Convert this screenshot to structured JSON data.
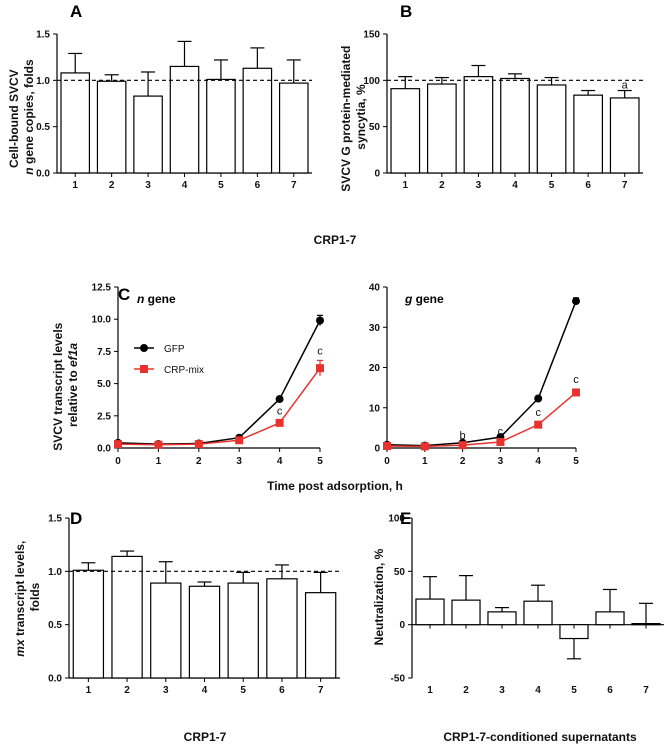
{
  "chart_data": [
    {
      "panel": "A",
      "type": "bar",
      "categories": [
        "1",
        "2",
        "3",
        "4",
        "5",
        "6",
        "7"
      ],
      "values": [
        1.08,
        0.99,
        0.83,
        1.15,
        1.01,
        1.13,
        0.97
      ],
      "errors": [
        0.21,
        0.07,
        0.26,
        0.27,
        0.21,
        0.22,
        0.25
      ],
      "ylabel": [
        "Cell-bound SVCV",
        "n gene copies, folds"
      ],
      "ylim": [
        0,
        1.5
      ],
      "yticks": [
        "0.0",
        "0.5",
        "1.0",
        "1.5"
      ],
      "reference_line": 1.0
    },
    {
      "panel": "B",
      "type": "bar",
      "categories": [
        "1",
        "2",
        "3",
        "4",
        "5",
        "6",
        "7"
      ],
      "values": [
        91,
        96,
        104,
        102,
        95,
        84,
        81
      ],
      "errors": [
        13,
        7,
        12,
        5,
        8,
        5,
        8
      ],
      "annotations": [
        "",
        "",
        "",
        "",
        "",
        "",
        "a"
      ],
      "ylabel": [
        "SVCV G protein-mediated",
        "syncytia, %"
      ],
      "ylim": [
        0,
        150
      ],
      "yticks": [
        "0",
        "50",
        "100",
        "150"
      ],
      "reference_line": 100
    },
    {
      "panel": "C",
      "subtitle": "n gene",
      "type": "line",
      "x": [
        0,
        1,
        2,
        3,
        4,
        5
      ],
      "series": [
        {
          "name": "GFP",
          "values": [
            0.4,
            0.3,
            0.35,
            0.8,
            3.8,
            9.9
          ],
          "errors": [
            0.1,
            0.05,
            0.05,
            0.1,
            0.1,
            0.4
          ]
        },
        {
          "name": "CRP-mix",
          "values": [
            0.3,
            0.25,
            0.3,
            0.6,
            1.95,
            6.2
          ],
          "errors": [
            0.1,
            0.05,
            0.05,
            0.1,
            0.2,
            0.6
          ]
        }
      ],
      "point_annotations": [
        "",
        "",
        "",
        "",
        "c",
        "c"
      ],
      "ylabel": [
        "SVCV transcript levels",
        "relative to ef1a"
      ],
      "ylim": [
        0,
        12.5
      ],
      "yticks": [
        "0.0",
        "2.5",
        "5.0",
        "7.5",
        "10.0",
        "12.5"
      ]
    },
    {
      "panel": "C",
      "subtitle": "g gene",
      "type": "line",
      "x": [
        0,
        1,
        2,
        3,
        4,
        5
      ],
      "series": [
        {
          "name": "GFP",
          "values": [
            0.8,
            0.6,
            1.3,
            2.7,
            12.3,
            36.5
          ],
          "errors": [
            0.2,
            0.1,
            0.2,
            0.3,
            0.3,
            0.8
          ]
        },
        {
          "name": "CRP-mix",
          "values": [
            0.5,
            0.4,
            0.7,
            1.5,
            5.8,
            13.8
          ],
          "errors": [
            0.2,
            0.1,
            0.1,
            0.2,
            0.6,
            0.8
          ]
        }
      ],
      "point_annotations": [
        "",
        "",
        "b",
        "c",
        "c",
        "c"
      ],
      "ylim": [
        0,
        40
      ],
      "yticks": [
        "0",
        "10",
        "20",
        "30",
        "40"
      ]
    },
    {
      "panel": "D",
      "type": "bar",
      "categories": [
        "1",
        "2",
        "3",
        "4",
        "5",
        "6",
        "7"
      ],
      "values": [
        1.01,
        1.14,
        0.89,
        0.86,
        0.89,
        0.93,
        0.8
      ],
      "errors": [
        0.07,
        0.05,
        0.2,
        0.04,
        0.1,
        0.13,
        0.19
      ],
      "ylabel": [
        "mx transcript levels,",
        "folds"
      ],
      "ylim": [
        0,
        1.5
      ],
      "yticks": [
        "0.0",
        "0.5",
        "1.0",
        "1.5"
      ],
      "reference_line": 1.0
    },
    {
      "panel": "E",
      "type": "bar",
      "categories": [
        "1",
        "2",
        "3",
        "4",
        "5",
        "6",
        "7"
      ],
      "values": [
        24,
        23,
        12,
        22,
        -13,
        12,
        1
      ],
      "errors": [
        21,
        23,
        4,
        15,
        19,
        21,
        19
      ],
      "ylabel": [
        "Neutralization, %"
      ],
      "ylim": [
        -50,
        100
      ],
      "yticks": [
        "-50",
        "0",
        "50",
        "100"
      ]
    }
  ],
  "labels": {
    "panel_a": "A",
    "panel_b": "B",
    "panel_c": "C",
    "panel_d": "D",
    "panel_e": "E",
    "ab_xlabel": "CRP1-7",
    "c_xlabel": "Time post adsorption, h",
    "d_xlabel": "CRP1-7",
    "e_xlabel": "CRP1-7-conditioned supernatants",
    "legend_gfp": "GFP",
    "legend_crp": "CRP-mix",
    "c_ylabel_line1": "SVCV transcript levels",
    "c_ylabel_line2_prefix": "relative to ",
    "c_ylabel_line2_italic": "ef1a",
    "n_gene_italic": "n",
    "n_gene_rest": " gene",
    "g_gene_italic": "g",
    "g_gene_rest": " gene",
    "a_ylabel_line1": "Cell-bound SVCV",
    "a_ylabel_line2_italic": "n",
    "a_ylabel_line2_rest": " gene copies, folds",
    "b_ylabel_line1": "SVCV G protein-mediated",
    "b_ylabel_line2": "syncytia, %",
    "d_ylabel_line1_italic": "mx",
    "d_ylabel_line1_rest": " transcript levels,",
    "d_ylabel_line2": "folds",
    "e_ylabel": "Neutralization, %"
  },
  "colors": {
    "gfp": "#000000",
    "crp": "#e8322e",
    "bar_fill": "#ffffff",
    "stroke": "#000000"
  }
}
